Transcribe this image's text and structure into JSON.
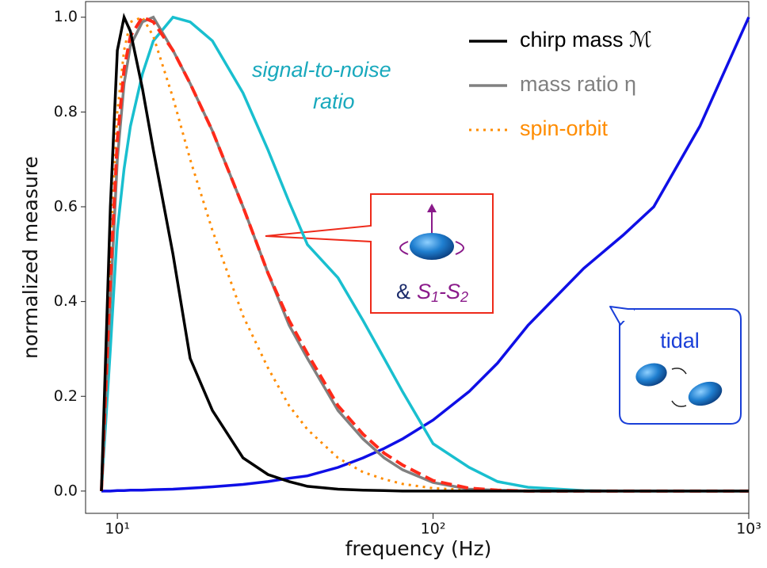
{
  "chart_data": {
    "type": "line",
    "xlabel": "frequency (Hz)",
    "ylabel": "normalized measure",
    "xscale": "log",
    "xlim": [
      7.93,
      1000
    ],
    "ylim": [
      -0.047,
      1.033
    ],
    "xticks": [
      {
        "value": 10,
        "label": "10¹"
      },
      {
        "value": 100,
        "label": "10²"
      },
      {
        "value": 1000,
        "label": "10³"
      }
    ],
    "yticks": [
      {
        "value": 0,
        "label": "0.0"
      },
      {
        "value": 0.2,
        "label": "0.2"
      },
      {
        "value": 0.4,
        "label": "0.4"
      },
      {
        "value": 0.6,
        "label": "0.6"
      },
      {
        "value": 0.8,
        "label": "0.8"
      },
      {
        "value": 1,
        "label": "1.0"
      }
    ],
    "legend": "upper right",
    "x": [
      8.9,
      9.5,
      10,
      10.5,
      11,
      12,
      13,
      15,
      17,
      20,
      25,
      30,
      35,
      40,
      50,
      60,
      70,
      80,
      100,
      130,
      160,
      200,
      300,
      400,
      500,
      700,
      1000
    ],
    "series": [
      {
        "color": "#0f0fe6",
        "style": "solid",
        "values": [
          0,
          0,
          0.001,
          0.001,
          0.002,
          0.002,
          0.003,
          0.004,
          0.006,
          0.009,
          0.014,
          0.02,
          0.027,
          0.032,
          0.05,
          0.07,
          0.09,
          0.11,
          0.15,
          0.21,
          0.27,
          0.35,
          0.47,
          0.54,
          0.6,
          0.77,
          1.0
        ]
      },
      {
        "color": "#19bfcf",
        "style": "solid",
        "values": [
          0,
          0.3,
          0.55,
          0.68,
          0.77,
          0.88,
          0.95,
          1.0,
          0.99,
          0.95,
          0.84,
          0.72,
          0.61,
          0.52,
          0.45,
          0.36,
          0.28,
          0.21,
          0.1,
          0.05,
          0.02,
          0.008,
          0.001,
          0,
          0,
          0,
          0
        ]
      },
      {
        "name": "spin-orbit",
        "color": "#ff8c00",
        "style": "dotted",
        "values": [
          0,
          0.5,
          0.8,
          0.93,
          0.99,
          1.0,
          0.96,
          0.83,
          0.7,
          0.55,
          0.37,
          0.26,
          0.18,
          0.13,
          0.07,
          0.04,
          0.025,
          0.015,
          0.006,
          0.002,
          0,
          0,
          0,
          0,
          0,
          0,
          0
        ]
      },
      {
        "name": "mass ratio η",
        "color": "#808080",
        "style": "solid",
        "values": [
          0,
          0.4,
          0.7,
          0.86,
          0.94,
          0.99,
          1.0,
          0.93,
          0.86,
          0.76,
          0.6,
          0.46,
          0.35,
          0.28,
          0.17,
          0.11,
          0.07,
          0.045,
          0.018,
          0.004,
          0.002,
          0,
          0,
          0,
          0,
          0,
          0
        ]
      },
      {
        "color": "#ff2a1a",
        "style": "dashed",
        "values": [
          0,
          0.45,
          0.74,
          0.89,
          0.96,
          1.0,
          0.99,
          0.93,
          0.86,
          0.76,
          0.6,
          0.46,
          0.36,
          0.29,
          0.18,
          0.12,
          0.08,
          0.055,
          0.022,
          0.006,
          0.002,
          0,
          0,
          0,
          0,
          0,
          0
        ]
      },
      {
        "name": "chirp mass ℳ",
        "color": "#000000",
        "style": "solid",
        "values": [
          0,
          0.6,
          0.93,
          1.0,
          0.97,
          0.85,
          0.72,
          0.5,
          0.28,
          0.17,
          0.07,
          0.035,
          0.02,
          0.01,
          0.004,
          0.002,
          0.001,
          0,
          0,
          0,
          0,
          0,
          0,
          0,
          0,
          0,
          0
        ]
      }
    ],
    "annotations": [
      {
        "text": "signal-to-noise",
        "color": "#19a9bd"
      },
      {
        "text": "ratio",
        "color": "#19a9bd"
      },
      {
        "text": "tidal",
        "color": "#1a3fd8"
      }
    ],
    "callout_text": [
      {
        "text": "&",
        "color": "#1a2a6a"
      },
      {
        "text": "S",
        "color": "#8a1a8a"
      },
      {
        "text": "1",
        "color": "#8a1a8a"
      },
      {
        "text": "-S",
        "color": "#8a1a8a"
      },
      {
        "text": "2",
        "color": "#8a1a8a"
      }
    ]
  }
}
